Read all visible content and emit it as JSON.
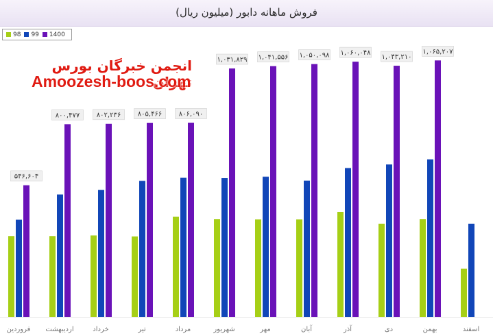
{
  "chart_data": {
    "type": "bar",
    "title": "فروش ماهانه دابور (میلیون ریال)",
    "categories": [
      "فروردین",
      "اردیبهشت",
      "خرداد",
      "تیر",
      "مرداد",
      "شهریور",
      "مهر",
      "آبان",
      "آذر",
      "دی",
      "بهمن",
      "اسفند"
    ],
    "series": [
      {
        "name": "98",
        "color": "#a6cf16",
        "values": [
          335000,
          335000,
          338000,
          334000,
          416000,
          406000,
          405000,
          405000,
          435000,
          387000,
          406000,
          200000
        ]
      },
      {
        "name": "99",
        "color": "#1146b8",
        "values": [
          404000,
          508000,
          527000,
          565000,
          578000,
          577000,
          582000,
          566000,
          618000,
          633000,
          654000,
          387000
        ]
      },
      {
        "name": "1400",
        "color": "#6a12b8",
        "values": [
          546604,
          800477,
          802236,
          805466,
          806090,
          1031829,
          1041556,
          1050098,
          1060048,
          1043210,
          1065207,
          null
        ]
      }
    ],
    "data_labels": [
      "۵۴۶,۶۰۴",
      "۸۰۰,۴۷۷",
      "۸۰۲,۲۳۶",
      "۸۰۵,۴۶۶",
      "۸۰۶,۰۹۰",
      "۱,۰۳۱,۸۲۹",
      "۱,۰۴۱,۵۵۶",
      "۱,۰۵۰,۰۹۸",
      "۱,۰۶۰,۰۴۸",
      "۱,۰۴۳,۲۱۰",
      "۱,۰۶۵,۲۰۷",
      ""
    ],
    "ylim": [
      0,
      1140000
    ],
    "legend_position": "top-left",
    "grid": false,
    "xlabel": "",
    "ylabel": ""
  },
  "watermark": {
    "line1": "انجمن خبرگان بورس تهران",
    "line2": "Amoozesh-boos.com"
  }
}
